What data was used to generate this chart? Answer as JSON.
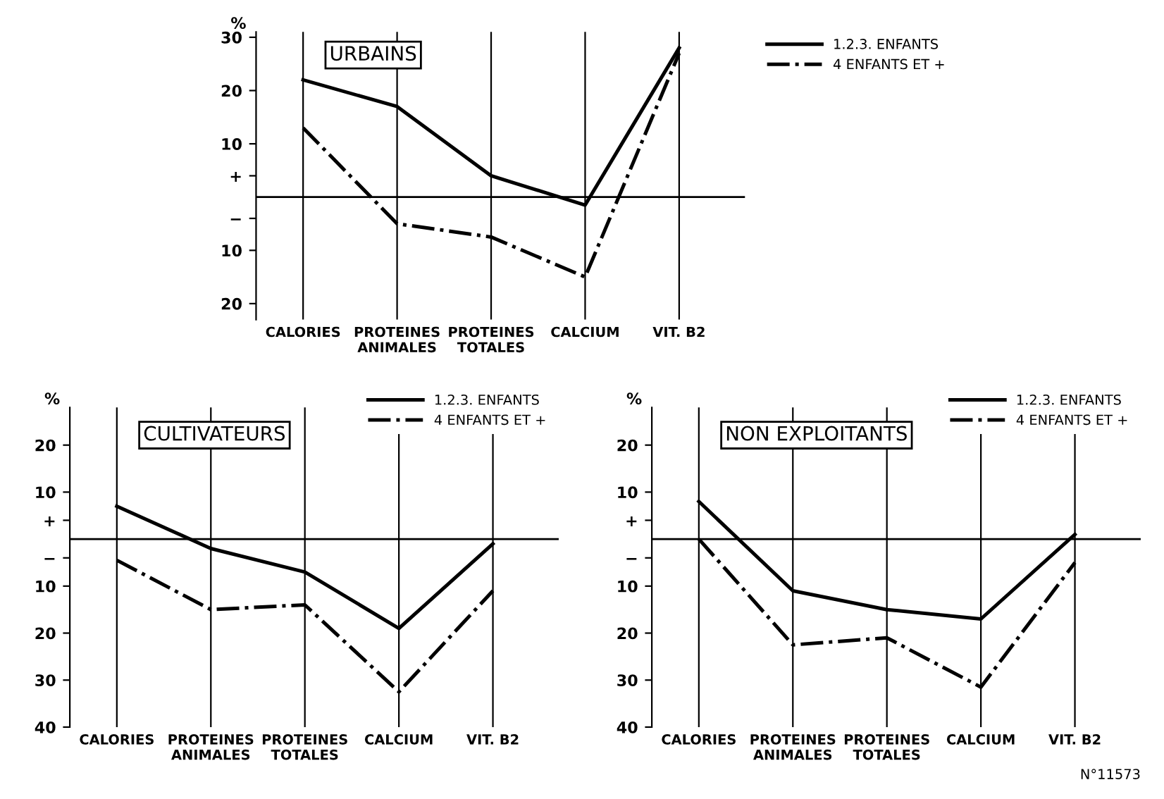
{
  "chart_data": [
    {
      "type": "line",
      "title": "URBAINS",
      "ylabel": "%",
      "categories": [
        "CALORIES",
        "PROTEINES\nANIMALES",
        "PROTEINES\nTOTALES",
        "CALCIUM",
        "VIT. B2"
      ],
      "series": [
        {
          "name": "1.2.3. ENFANTS",
          "color": "#000000",
          "line_style": "solid",
          "values": [
            22,
            17,
            4,
            -1.5,
            28
          ]
        },
        {
          "name": "4 ENFANTS ET +",
          "color": "#000000",
          "line_style": "dashdot",
          "values": [
            13,
            -5,
            -7.5,
            -15,
            27
          ]
        }
      ],
      "ylim": [
        -23,
        31
      ],
      "yticks": [
        {
          "value": -20,
          "label": "20"
        },
        {
          "value": -10,
          "label": "10"
        },
        {
          "value": -4,
          "label": "−"
        },
        {
          "value": 4,
          "label": "+"
        },
        10,
        20,
        30
      ],
      "ref_lines": [
        {
          "axis": "y",
          "value": 0
        }
      ],
      "grid": "x",
      "legend": "top right"
    },
    {
      "type": "line",
      "title": "CULTIVATEURS",
      "ylabel": "%",
      "categories": [
        "CALORIES",
        "PROTEINES\nANIMALES",
        "PROTEINES\nTOTALES",
        "CALCIUM",
        "VIT. B2"
      ],
      "series": [
        {
          "name": "1.2.3. ENFANTS",
          "color": "#000000",
          "line_style": "solid",
          "values": [
            7,
            -2,
            -7,
            -19,
            -1
          ]
        },
        {
          "name": "4 ENFANTS ET +",
          "color": "#000000",
          "line_style": "dashdot",
          "values": [
            -4.5,
            -15,
            -14,
            -32.5,
            -11
          ]
        }
      ],
      "ylim": [
        -40,
        28
      ],
      "yticks": [
        {
          "value": -40,
          "label": "40"
        },
        {
          "value": -30,
          "label": "30"
        },
        {
          "value": -20,
          "label": "20"
        },
        {
          "value": -10,
          "label": "10"
        },
        {
          "value": -4,
          "label": "−"
        },
        {
          "value": 4,
          "label": "+"
        },
        10,
        20
      ],
      "ref_lines": [
        {
          "axis": "y",
          "value": 0
        }
      ],
      "grid": "x",
      "legend": "top right"
    },
    {
      "type": "line",
      "title": "NON EXPLOITANTS",
      "ylabel": "%",
      "categories": [
        "CALORIES",
        "PROTEINES\nANIMALES",
        "PROTEINES\nTOTALES",
        "CALCIUM",
        "VIT. B2"
      ],
      "series": [
        {
          "name": "1.2.3. ENFANTS",
          "color": "#000000",
          "line_style": "solid",
          "values": [
            8,
            -11,
            -15,
            -17,
            1
          ]
        },
        {
          "name": "4 ENFANTS ET +",
          "color": "#000000",
          "line_style": "dashdot",
          "values": [
            0,
            -22.5,
            -21,
            -31.5,
            -5
          ]
        }
      ],
      "ylim": [
        -40,
        28
      ],
      "yticks": [
        {
          "value": -40,
          "label": "40"
        },
        {
          "value": -30,
          "label": "30"
        },
        {
          "value": -20,
          "label": "20"
        },
        {
          "value": -10,
          "label": "10"
        },
        {
          "value": -4,
          "label": "−"
        },
        {
          "value": 4,
          "label": "+"
        },
        10,
        20
      ],
      "ref_lines": [
        {
          "axis": "y",
          "value": 0
        }
      ],
      "grid": "x",
      "legend": "top right",
      "annotations": [
        "N°11573"
      ]
    }
  ]
}
